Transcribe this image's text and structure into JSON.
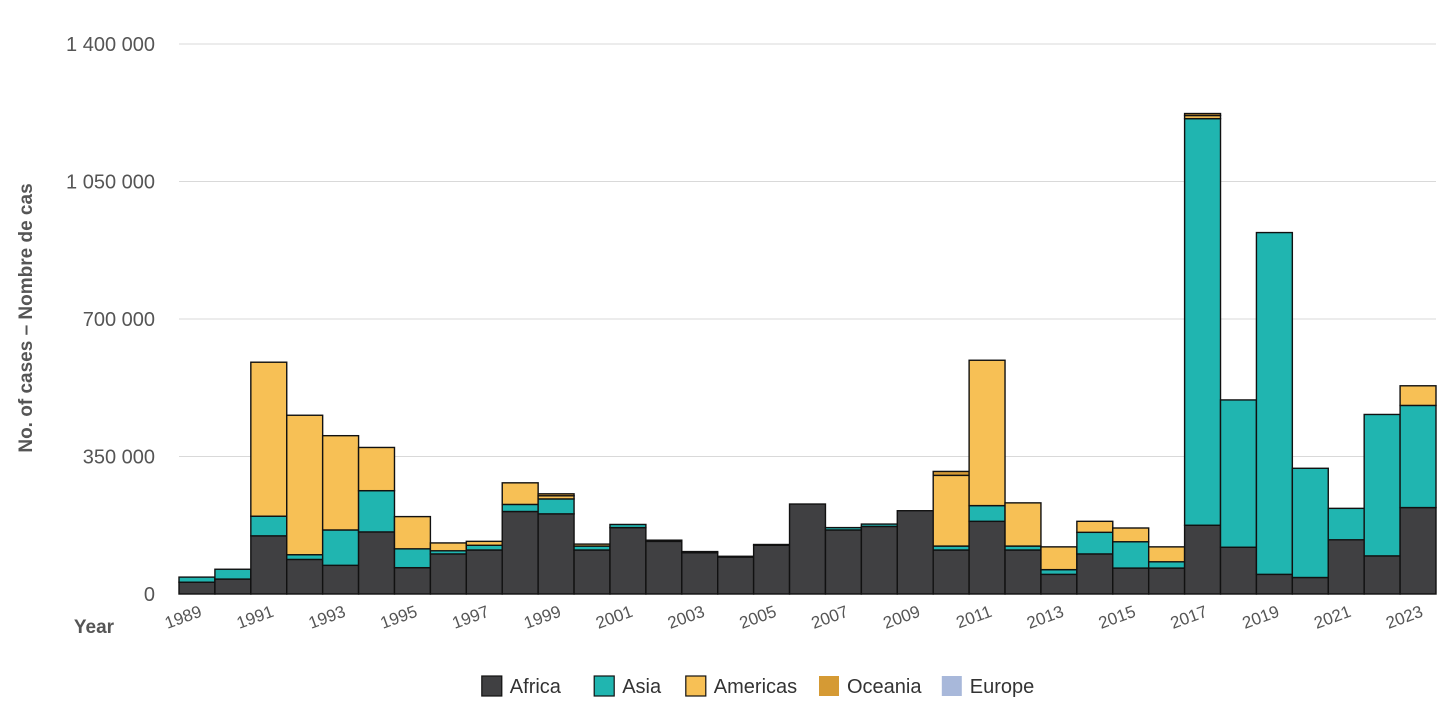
{
  "chart_data": {
    "type": "bar",
    "stacked": true,
    "title": "",
    "xlabel": "Year",
    "ylabel": "No. of cases – Nombre de cas",
    "ylim": [
      0,
      1400000
    ],
    "yticks": [
      0,
      350000,
      700000,
      1050000,
      1400000
    ],
    "ytick_labels": [
      "0",
      "350 000",
      "700 000",
      "1 050 000",
      "1 400 000"
    ],
    "grid": true,
    "legend_position": "bottom",
    "categories": [
      "1989",
      "1990",
      "1991",
      "1992",
      "1993",
      "1994",
      "1995",
      "1996",
      "1997",
      "1998",
      "1999",
      "2000",
      "2001",
      "2002",
      "2003",
      "2004",
      "2005",
      "2006",
      "2007",
      "2008",
      "2009",
      "2010",
      "2011",
      "2012",
      "2013",
      "2014",
      "2015",
      "2016",
      "2017",
      "2018",
      "2019",
      "2020",
      "2021",
      "2022",
      "2023"
    ],
    "xtick_labels": [
      "1989",
      "",
      "1991",
      "",
      "1993",
      "",
      "1995",
      "",
      "1997",
      "",
      "1999",
      "",
      "2001",
      "",
      "2003",
      "",
      "2005",
      "",
      "2007",
      "",
      "2009",
      "",
      "2011",
      "",
      "2013",
      "",
      "2015",
      "",
      "2017",
      "",
      "2019",
      "",
      "2021",
      "",
      "2023"
    ],
    "series": [
      {
        "name": "Africa",
        "color": "#404042",
        "values": [
          30000,
          38000,
          148000,
          88000,
          73000,
          158000,
          67000,
          102000,
          112000,
          210000,
          204000,
          112000,
          169000,
          134000,
          105000,
          94000,
          124000,
          229000,
          163000,
          172000,
          212000,
          112000,
          185000,
          112000,
          50000,
          102000,
          66000,
          66000,
          175000,
          119000,
          50000,
          42000,
          138000,
          97000,
          220000
        ]
      },
      {
        "name": "Asia",
        "color": "#20b5b0",
        "values": [
          13000,
          25000,
          50000,
          12000,
          90000,
          105000,
          48000,
          8000,
          12000,
          18000,
          38000,
          10000,
          8000,
          3000,
          3000,
          2000,
          2000,
          0,
          6000,
          6000,
          0,
          10000,
          40000,
          10000,
          12000,
          55000,
          67000,
          16000,
          1035000,
          375000,
          870000,
          278000,
          80000,
          360000,
          260000
        ]
      },
      {
        "name": "Americas",
        "color": "#f7c055",
        "values": [
          0,
          0,
          392000,
          355000,
          240000,
          110000,
          82000,
          20000,
          10000,
          55000,
          8000,
          5000,
          0,
          0,
          0,
          0,
          0,
          0,
          0,
          0,
          0,
          180000,
          370000,
          110000,
          58000,
          28000,
          35000,
          38000,
          8000,
          0,
          0,
          0,
          0,
          0,
          50000
        ]
      },
      {
        "name": "Oceania",
        "color": "#d59a34",
        "values": [
          0,
          0,
          0,
          0,
          0,
          0,
          0,
          0,
          0,
          0,
          5000,
          0,
          0,
          0,
          0,
          0,
          0,
          0,
          0,
          0,
          0,
          10000,
          0,
          0,
          0,
          0,
          0,
          0,
          5000,
          0,
          0,
          0,
          0,
          0,
          0
        ]
      },
      {
        "name": "Europe",
        "color": "#a8b8da",
        "values": [
          0,
          0,
          0,
          0,
          0,
          0,
          0,
          0,
          0,
          0,
          0,
          0,
          0,
          0,
          0,
          0,
          0,
          0,
          0,
          0,
          0,
          0,
          0,
          0,
          0,
          0,
          0,
          0,
          0,
          0,
          0,
          0,
          0,
          0,
          0
        ]
      }
    ]
  }
}
